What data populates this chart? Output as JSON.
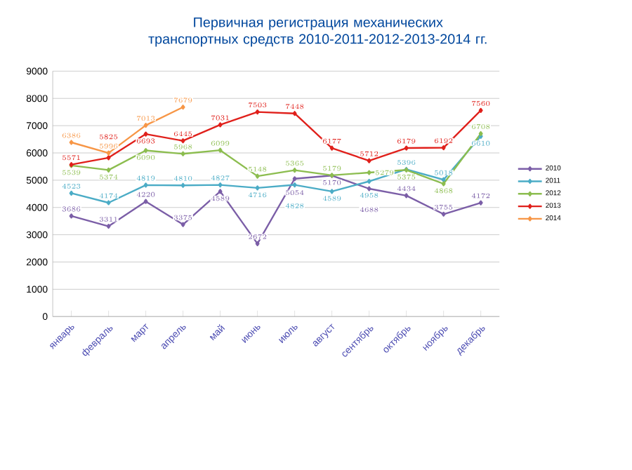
{
  "chart_data": {
    "type": "line",
    "title": "Первичная регистрация механических транспортных средств 2010-2011-2012-2013-2014  гг.",
    "categories": [
      "январь",
      "февраль",
      "март",
      "апрель",
      "май",
      "июнь",
      "июль",
      "август",
      "сентябрь",
      "октябрь",
      "ноябрь",
      "декабрь"
    ],
    "series": [
      {
        "name": "2010",
        "color": "#7b5ea7",
        "values": [
          3686,
          3311,
          4220,
          3375,
          4589,
          2672,
          5054,
          5170,
          4688,
          4434,
          3755,
          4172
        ]
      },
      {
        "name": "2011",
        "color": "#4bacc6",
        "values": [
          4523,
          4174,
          4819,
          4810,
          4827,
          4716,
          4828,
          4589,
          4958,
          5396,
          5018,
          6610
        ]
      },
      {
        "name": "2012",
        "color": "#8cbd4f",
        "values": [
          5539,
          5374,
          6090,
          5968,
          6099,
          5148,
          5365,
          5179,
          5279,
          5375,
          4868,
          6708
        ]
      },
      {
        "name": "2013",
        "color": "#e0201b",
        "values": [
          5571,
          5825,
          6693,
          6445,
          7031,
          7503,
          7448,
          6177,
          5712,
          6179,
          6192,
          7560
        ]
      },
      {
        "name": "2014",
        "color": "#f79646",
        "values": [
          6386,
          5996,
          7013,
          7679,
          null,
          null,
          null,
          null,
          null,
          null,
          null,
          null
        ]
      }
    ],
    "ylim": [
      0,
      9000
    ],
    "yticks": [
      0,
      1000,
      2000,
      3000,
      4000,
      5000,
      6000,
      7000,
      8000,
      9000
    ],
    "grid": "y",
    "legend": "right",
    "marker": "diamond",
    "data_labels": true
  }
}
